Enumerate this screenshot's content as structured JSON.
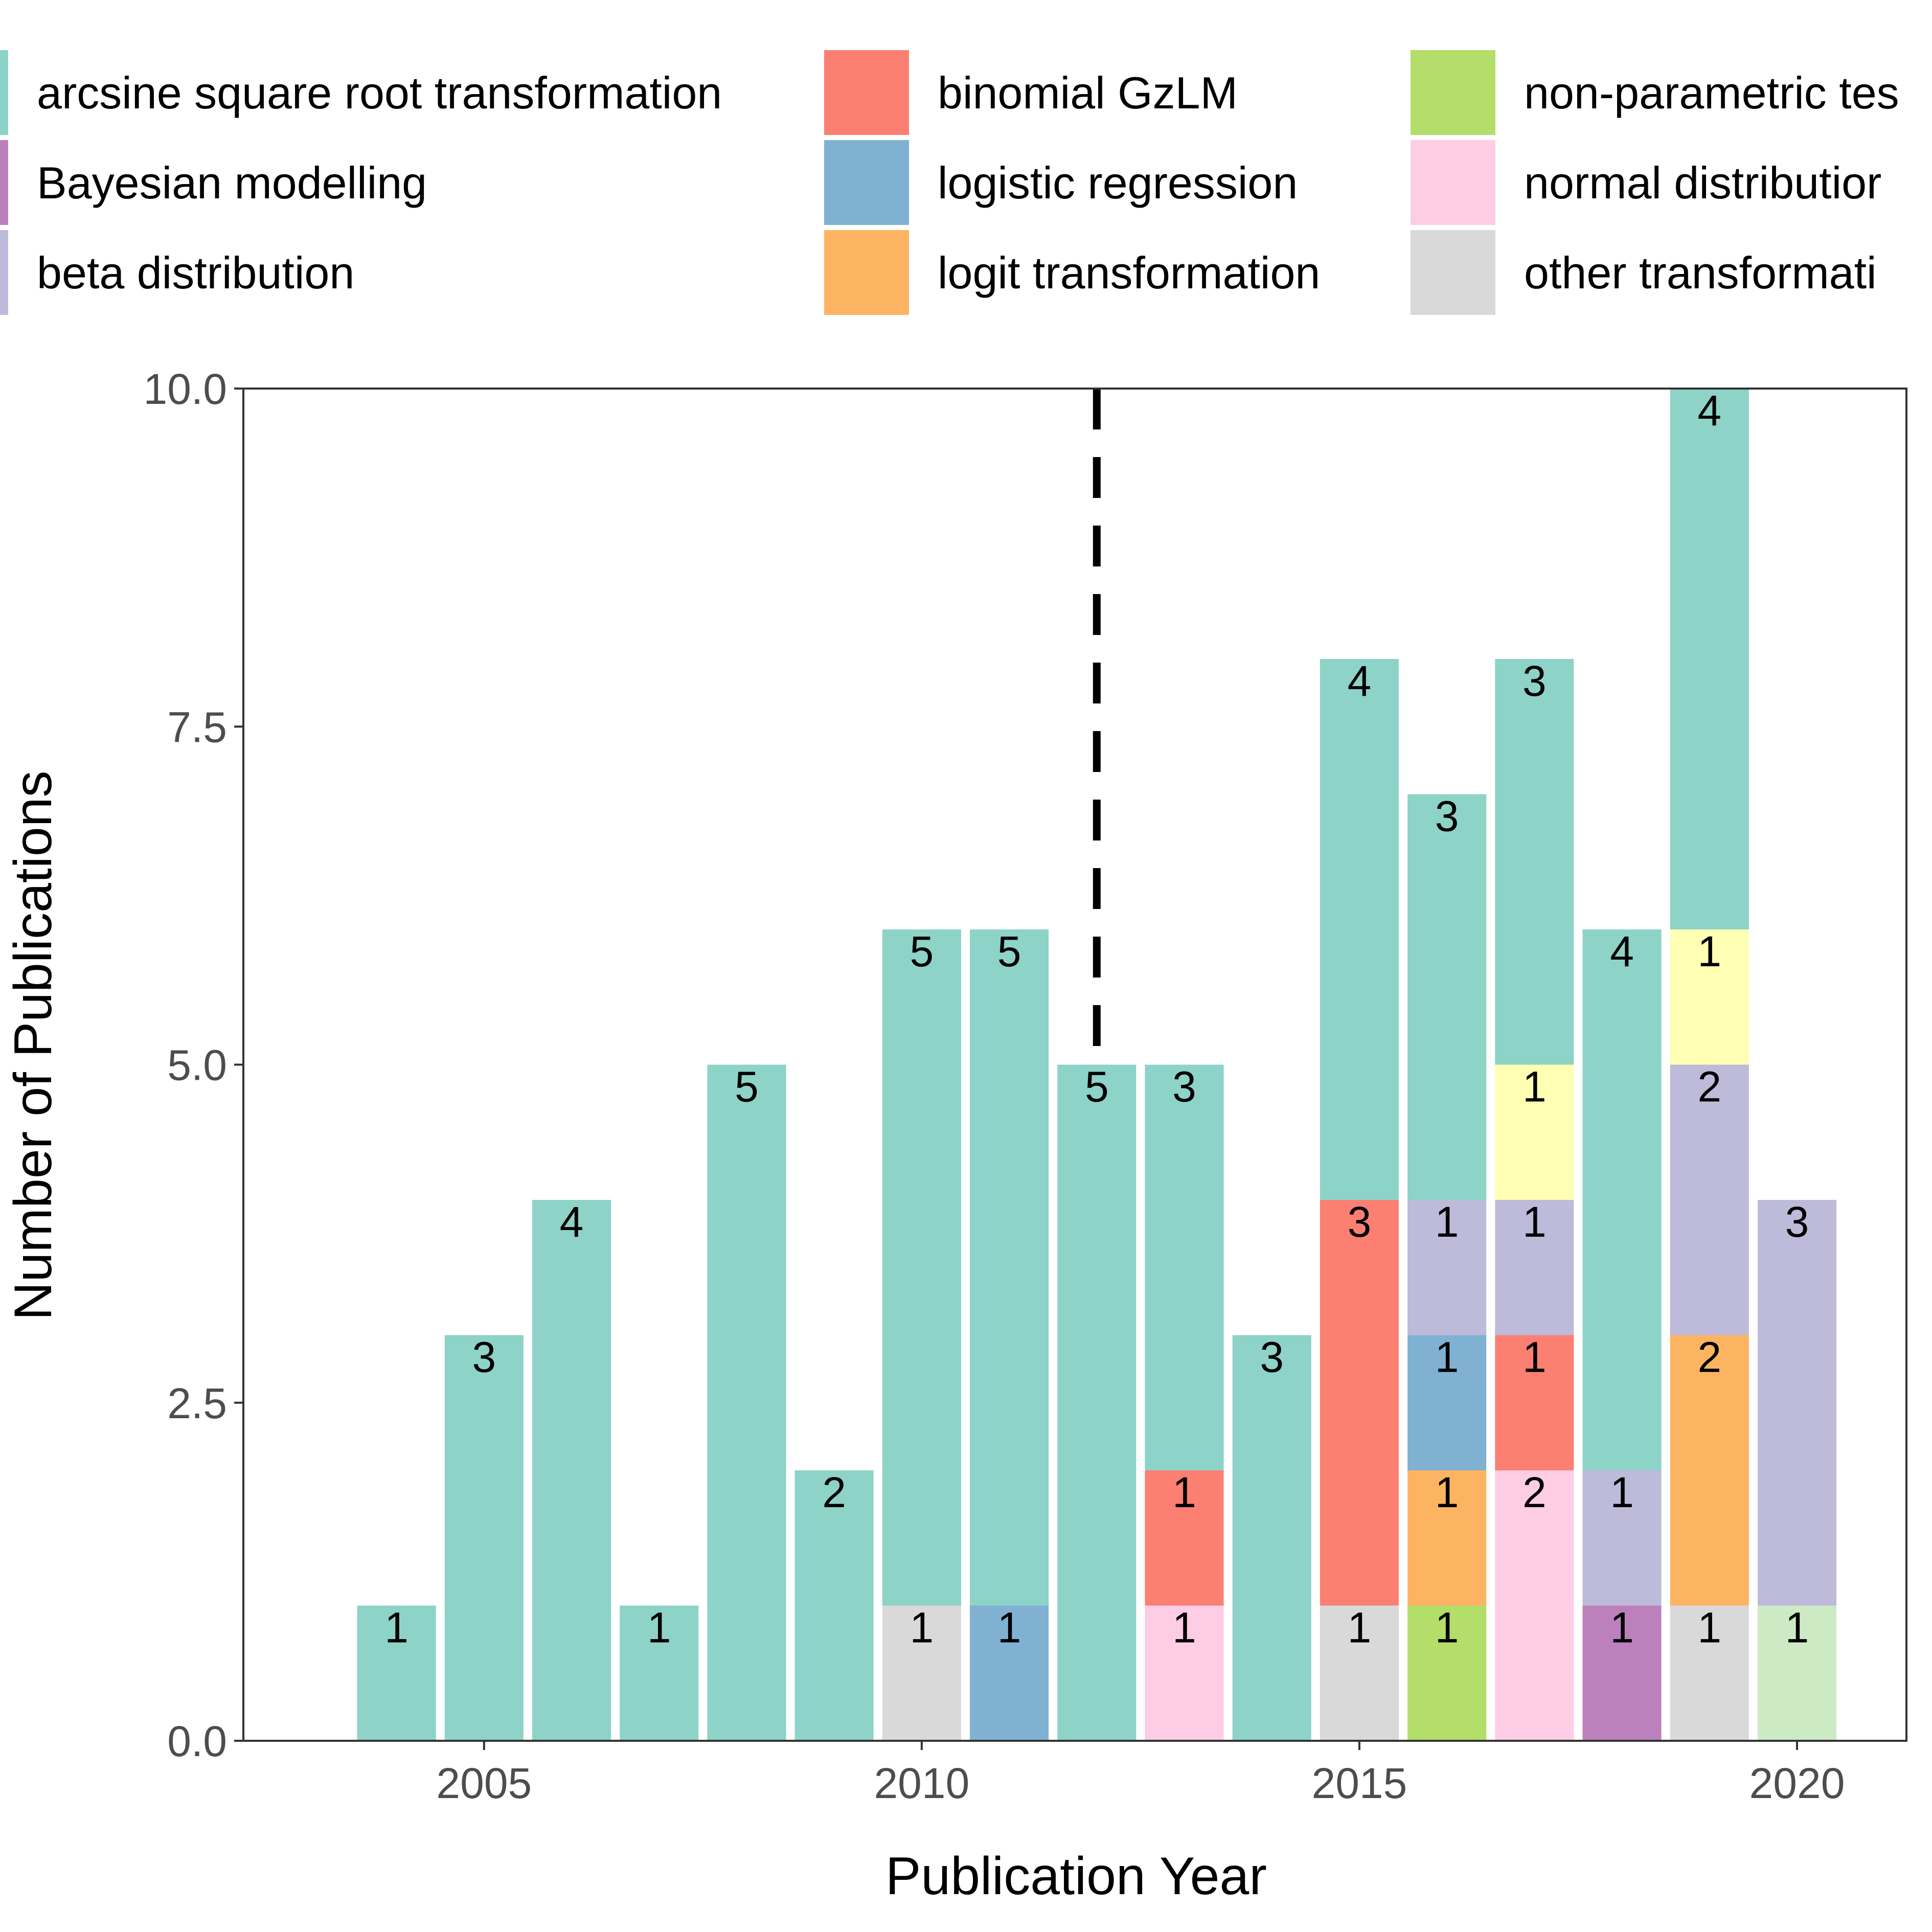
{
  "chart_data": {
    "type": "bar",
    "stacked": true,
    "title": "",
    "xlabel": "Publication Year",
    "ylabel": "Number of Publications",
    "xlim": [
      2002.25,
      2021.25
    ],
    "ylim": [
      0,
      10
    ],
    "x_ticks": [
      2005,
      2010,
      2015,
      2020
    ],
    "y_ticks": [
      0,
      2.5,
      5,
      7.5,
      10
    ],
    "y_tick_labels": [
      "0.0",
      "2.5",
      "5.0",
      "7.5",
      "10.0"
    ],
    "grid": false,
    "legend_position": "top",
    "reference_line": {
      "x": 2012,
      "style": "dashed",
      "color": "#000000"
    },
    "legend": [
      {
        "label": "arcsine square root transformation",
        "color": "#8DD3C7"
      },
      {
        "label": "Bayesian modelling",
        "color": "#BC80BD"
      },
      {
        "label": "beta distribution",
        "color": "#BEBADA"
      },
      {
        "label": "binomial GzLM",
        "color": "#FB8072"
      },
      {
        "label": "logistic regression",
        "color": "#80B1D3"
      },
      {
        "label": "logit transformation",
        "color": "#FDB462"
      },
      {
        "label": "non-parametric tes",
        "color": "#B3DE69"
      },
      {
        "label": "normal distributior",
        "color": "#FCCDE5"
      },
      {
        "label": "other transformati",
        "color": "#D9D9D9"
      }
    ],
    "colors": {
      "arcsine": "#8DD3C7",
      "extra_yellow": "#FFFFB3",
      "extra_lightgreen": "#CCEBC5"
    },
    "bars": [
      {
        "x": 2004,
        "segments": [
          {
            "v": 1,
            "color": "#8DD3C7"
          }
        ]
      },
      {
        "x": 2005,
        "segments": [
          {
            "v": 3,
            "color": "#8DD3C7"
          }
        ]
      },
      {
        "x": 2006,
        "segments": [
          {
            "v": 4,
            "color": "#8DD3C7"
          }
        ]
      },
      {
        "x": 2007,
        "segments": [
          {
            "v": 1,
            "color": "#8DD3C7"
          }
        ]
      },
      {
        "x": 2008,
        "segments": [
          {
            "v": 5,
            "color": "#8DD3C7"
          }
        ]
      },
      {
        "x": 2009,
        "segments": [
          {
            "v": 2,
            "color": "#8DD3C7"
          }
        ]
      },
      {
        "x": 2010,
        "segments": [
          {
            "v": 1,
            "color": "#D9D9D9"
          },
          {
            "v": 5,
            "color": "#8DD3C7"
          }
        ]
      },
      {
        "x": 2011,
        "segments": [
          {
            "v": 1,
            "color": "#80B1D3"
          },
          {
            "v": 5,
            "color": "#8DD3C7"
          }
        ]
      },
      {
        "x": 2012,
        "segments": [
          {
            "v": 5,
            "color": "#8DD3C7"
          }
        ]
      },
      {
        "x": 2013,
        "segments": [
          {
            "v": 1,
            "color": "#FCCDE5"
          },
          {
            "v": 1,
            "color": "#FB8072"
          },
          {
            "v": 3,
            "color": "#8DD3C7"
          }
        ]
      },
      {
        "x": 2014,
        "segments": [
          {
            "v": 3,
            "color": "#8DD3C7"
          }
        ]
      },
      {
        "x": 2015,
        "segments": [
          {
            "v": 1,
            "color": "#D9D9D9"
          },
          {
            "v": 3,
            "color": "#FB8072"
          },
          {
            "v": 4,
            "color": "#8DD3C7"
          }
        ]
      },
      {
        "x": 2016,
        "segments": [
          {
            "v": 1,
            "color": "#B3DE69"
          },
          {
            "v": 1,
            "color": "#FDB462"
          },
          {
            "v": 1,
            "color": "#80B1D3"
          },
          {
            "v": 1,
            "color": "#BEBADA"
          },
          {
            "v": 3,
            "color": "#8DD3C7"
          }
        ]
      },
      {
        "x": 2017,
        "segments": [
          {
            "v": 2,
            "color": "#FCCDE5"
          },
          {
            "v": 1,
            "color": "#FB8072"
          },
          {
            "v": 1,
            "color": "#BEBADA"
          },
          {
            "v": 1,
            "color": "#FFFFB3"
          },
          {
            "v": 3,
            "color": "#8DD3C7"
          }
        ]
      },
      {
        "x": 2018,
        "segments": [
          {
            "v": 1,
            "color": "#BC80BD"
          },
          {
            "v": 1,
            "color": "#BEBADA"
          },
          {
            "v": 4,
            "color": "#8DD3C7"
          }
        ]
      },
      {
        "x": 2019,
        "segments": [
          {
            "v": 1,
            "color": "#D9D9D9"
          },
          {
            "v": 2,
            "color": "#FDB462"
          },
          {
            "v": 2,
            "color": "#BEBADA"
          },
          {
            "v": 1,
            "color": "#FFFFB3"
          },
          {
            "v": 4,
            "color": "#8DD3C7"
          }
        ]
      },
      {
        "x": 2020,
        "segments": [
          {
            "v": 1,
            "color": "#CCEBC5"
          },
          {
            "v": 3,
            "color": "#BEBADA"
          }
        ]
      }
    ]
  }
}
